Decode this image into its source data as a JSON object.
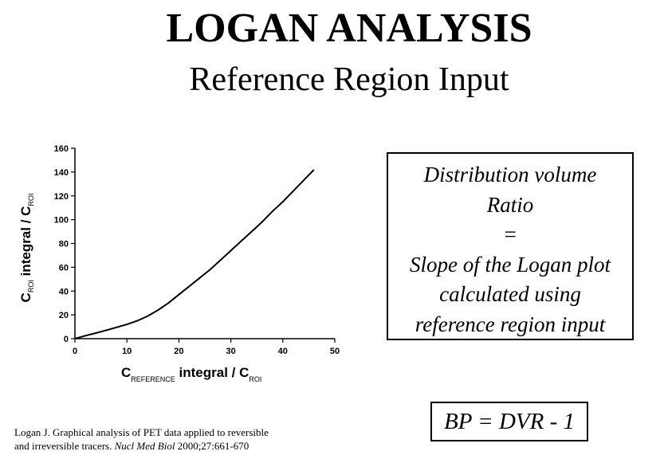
{
  "header": {
    "title": "LOGAN ANALYSIS",
    "subtitle": "Reference Region Input"
  },
  "chart_data": {
    "type": "line",
    "xlabel": {
      "main": "C",
      "sub1": "REFERENCE",
      "mid": " integral / C",
      "sub2": "ROI"
    },
    "ylabel": {
      "main": "C",
      "sub1": "ROI",
      "mid": " integral / C",
      "sub2": "ROI"
    },
    "xlim": [
      0,
      50
    ],
    "ylim": [
      0,
      160
    ],
    "xticks": [
      0,
      10,
      20,
      30,
      40,
      50
    ],
    "yticks": [
      0,
      20,
      40,
      60,
      80,
      100,
      120,
      140,
      160
    ],
    "grid": false,
    "series": [
      {
        "x": [
          0,
          2,
          4,
          6,
          8,
          10,
          12,
          14,
          16,
          18,
          20,
          22,
          24,
          26,
          28,
          30,
          32,
          34,
          36,
          38,
          40,
          42,
          44,
          46
        ],
        "y": [
          0,
          2.5,
          4.7,
          7,
          9.5,
          12,
          15,
          19,
          24,
          30,
          37,
          44,
          51,
          58,
          66,
          74,
          82,
          90,
          98,
          107,
          115,
          124,
          133,
          142
        ]
      }
    ]
  },
  "dvr_box": {
    "lines": [
      "Distribution volume",
      "Ratio",
      "=",
      "Slope of the Logan plot",
      "calculated using",
      "reference region input"
    ]
  },
  "bp_box": {
    "text": "BP = DVR - 1"
  },
  "citation": {
    "line1": "Logan J. Graphical analysis of PET data applied to reversible",
    "line2_start": "and irreversible tracers. ",
    "journal": "Nucl Med Biol",
    "line2_end": " 2000;27:661-670"
  }
}
